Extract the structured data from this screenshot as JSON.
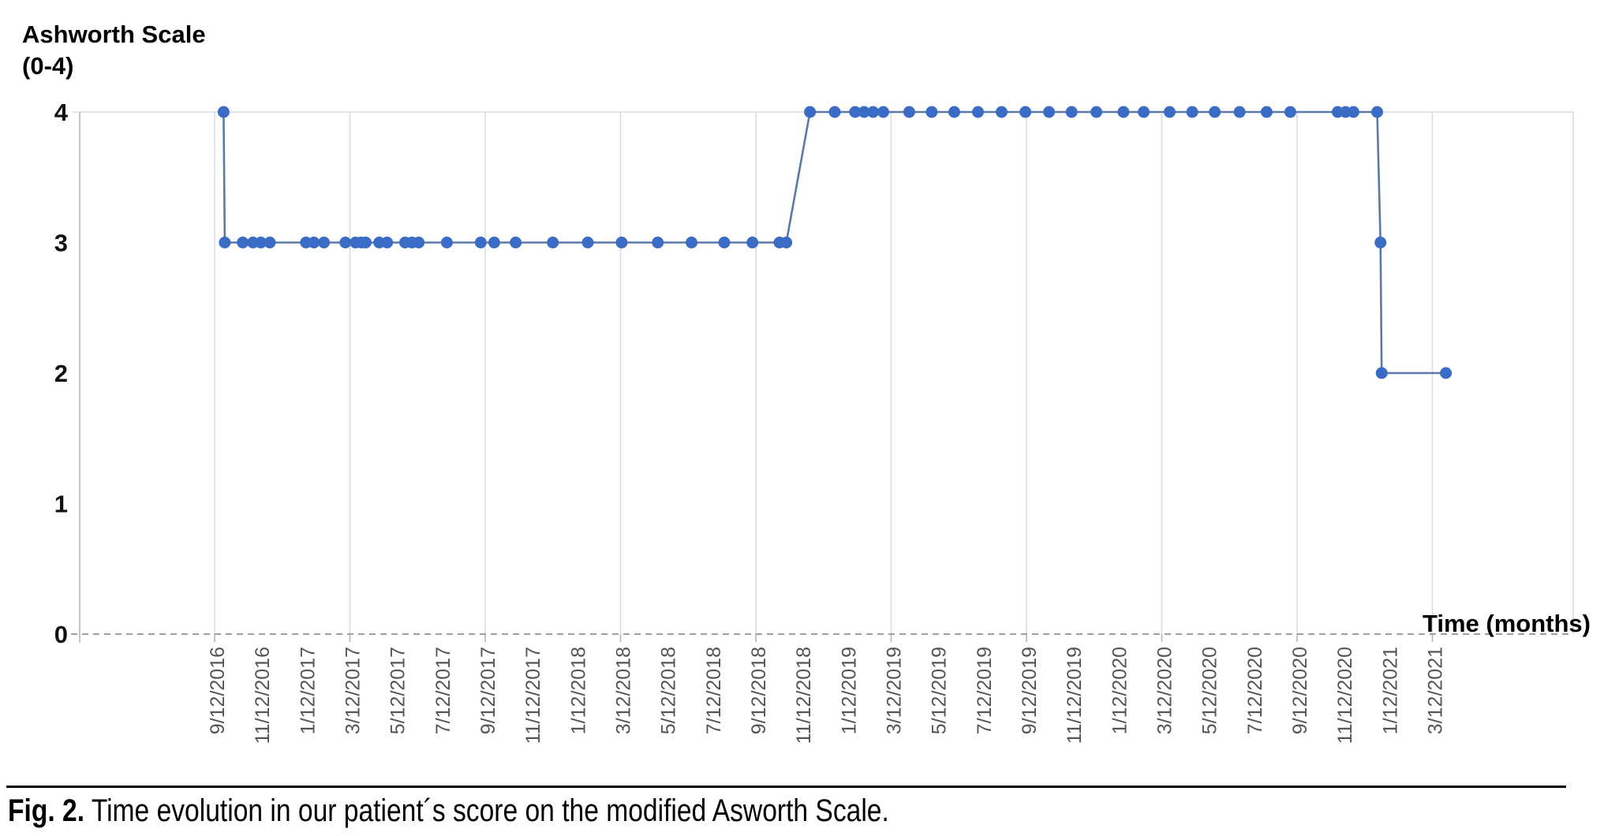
{
  "title": {
    "line1": "Ashworth Scale",
    "line2": "(0-4)"
  },
  "caption": {
    "label": "Fig. 2.",
    "text": " Time evolution in our patient´s score on the modified Asworth Scale."
  },
  "colors": {
    "dot": "#3a6cc6",
    "line": "#5b79a8",
    "grid": "#d9dce1",
    "axis": "#c3c8cf",
    "tick_stub": "#b0b5bc",
    "dashed_axis": "#9aa0a6",
    "x_label": "#555555",
    "y_label": "#111111",
    "text": "#000000"
  },
  "chart_data": {
    "type": "line",
    "title": "Ashworth Scale (0-4)",
    "xlabel": "Time (months)",
    "ylabel": "Ashworth Scale (0-4)",
    "ylim": [
      0,
      4
    ],
    "y_ticks": [
      0,
      1,
      2,
      3,
      4
    ],
    "grid": "vertical gridlines every 6 months; solid top line at y=4; dashed baseline at y=0",
    "legend": "none",
    "x_unit": "months since 9/12/2016",
    "x_tick_interval_months": 2,
    "x_gridline_every_n_ticks": 3,
    "x_tick_labels": [
      "9/12/2016",
      "11/12/2016",
      "1/12/2017",
      "3/12/2017",
      "5/12/2017",
      "7/12/2017",
      "9/12/2017",
      "11/12/2017",
      "1/12/2018",
      "3/12/2018",
      "5/12/2018",
      "7/12/2018",
      "9/12/2018",
      "11/12/2018",
      "1/12/2019",
      "3/12/2019",
      "5/12/2019",
      "7/12/2019",
      "9/12/2019",
      "11/12/2019",
      "1/12/2020",
      "3/12/2020",
      "5/12/2020",
      "7/12/2020",
      "9/12/2020",
      "11/12/2020",
      "1/12/2021",
      "3/12/2021"
    ],
    "series": [
      {
        "name": "Modified Ashworth score",
        "points": [
          [
            0.4,
            4
          ],
          [
            0.45,
            3
          ],
          [
            1.25,
            3
          ],
          [
            1.7,
            3
          ],
          [
            2.05,
            3
          ],
          [
            2.45,
            3
          ],
          [
            4.05,
            3
          ],
          [
            4.4,
            3
          ],
          [
            4.85,
            3
          ],
          [
            5.8,
            3
          ],
          [
            6.25,
            3
          ],
          [
            6.5,
            3
          ],
          [
            6.7,
            3
          ],
          [
            7.3,
            3
          ],
          [
            7.65,
            3
          ],
          [
            8.45,
            3
          ],
          [
            8.75,
            3
          ],
          [
            9.05,
            3
          ],
          [
            10.3,
            3
          ],
          [
            11.8,
            3
          ],
          [
            12.4,
            3
          ],
          [
            13.35,
            3
          ],
          [
            15.0,
            3
          ],
          [
            16.55,
            3
          ],
          [
            18.05,
            3
          ],
          [
            19.65,
            3
          ],
          [
            21.15,
            3
          ],
          [
            22.6,
            3
          ],
          [
            23.85,
            3
          ],
          [
            25.05,
            3
          ],
          [
            25.35,
            3
          ],
          [
            26.4,
            4
          ],
          [
            27.5,
            4
          ],
          [
            28.4,
            4
          ],
          [
            28.8,
            4
          ],
          [
            29.2,
            4
          ],
          [
            29.65,
            4
          ],
          [
            30.8,
            4
          ],
          [
            31.8,
            4
          ],
          [
            32.8,
            4
          ],
          [
            33.85,
            4
          ],
          [
            34.9,
            4
          ],
          [
            35.95,
            4
          ],
          [
            37.0,
            4
          ],
          [
            38.0,
            4
          ],
          [
            39.1,
            4
          ],
          [
            40.3,
            4
          ],
          [
            41.2,
            4
          ],
          [
            42.35,
            4
          ],
          [
            43.35,
            4
          ],
          [
            44.35,
            4
          ],
          [
            45.45,
            4
          ],
          [
            46.65,
            4
          ],
          [
            47.7,
            4
          ],
          [
            49.8,
            4
          ],
          [
            50.15,
            4
          ],
          [
            50.5,
            4
          ],
          [
            51.55,
            4
          ],
          [
            51.7,
            3
          ],
          [
            51.75,
            2
          ],
          [
            54.6,
            2
          ]
        ]
      }
    ]
  }
}
